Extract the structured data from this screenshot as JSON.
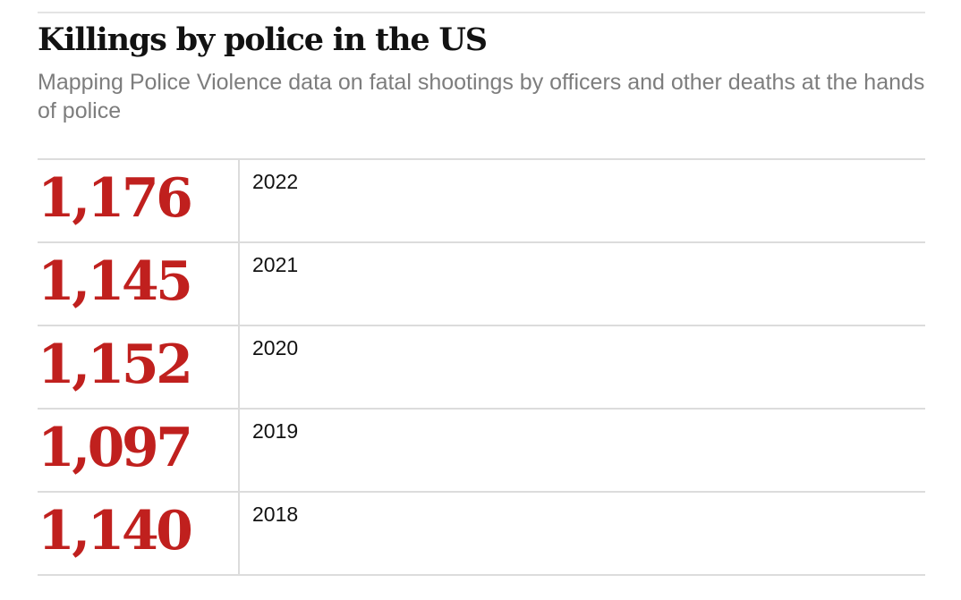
{
  "chart_data": {
    "type": "table",
    "title": "Killings by police in the US",
    "subtitle": "Mapping Police Violence data on fatal shootings by officers and other deaths at the hands of police",
    "rows": [
      {
        "value_label": "1,176",
        "value": 1176,
        "year": "2022"
      },
      {
        "value_label": "1,145",
        "value": 1145,
        "year": "2021"
      },
      {
        "value_label": "1,152",
        "value": 1152,
        "year": "2020"
      },
      {
        "value_label": "1,097",
        "value": 1097,
        "year": "2019"
      },
      {
        "value_label": "1,140",
        "value": 1140,
        "year": "2018"
      }
    ],
    "colors": {
      "value": "#c0201e",
      "title": "#121212",
      "subtitle": "#7d7d7d",
      "rule": "#dcdcdc"
    }
  }
}
